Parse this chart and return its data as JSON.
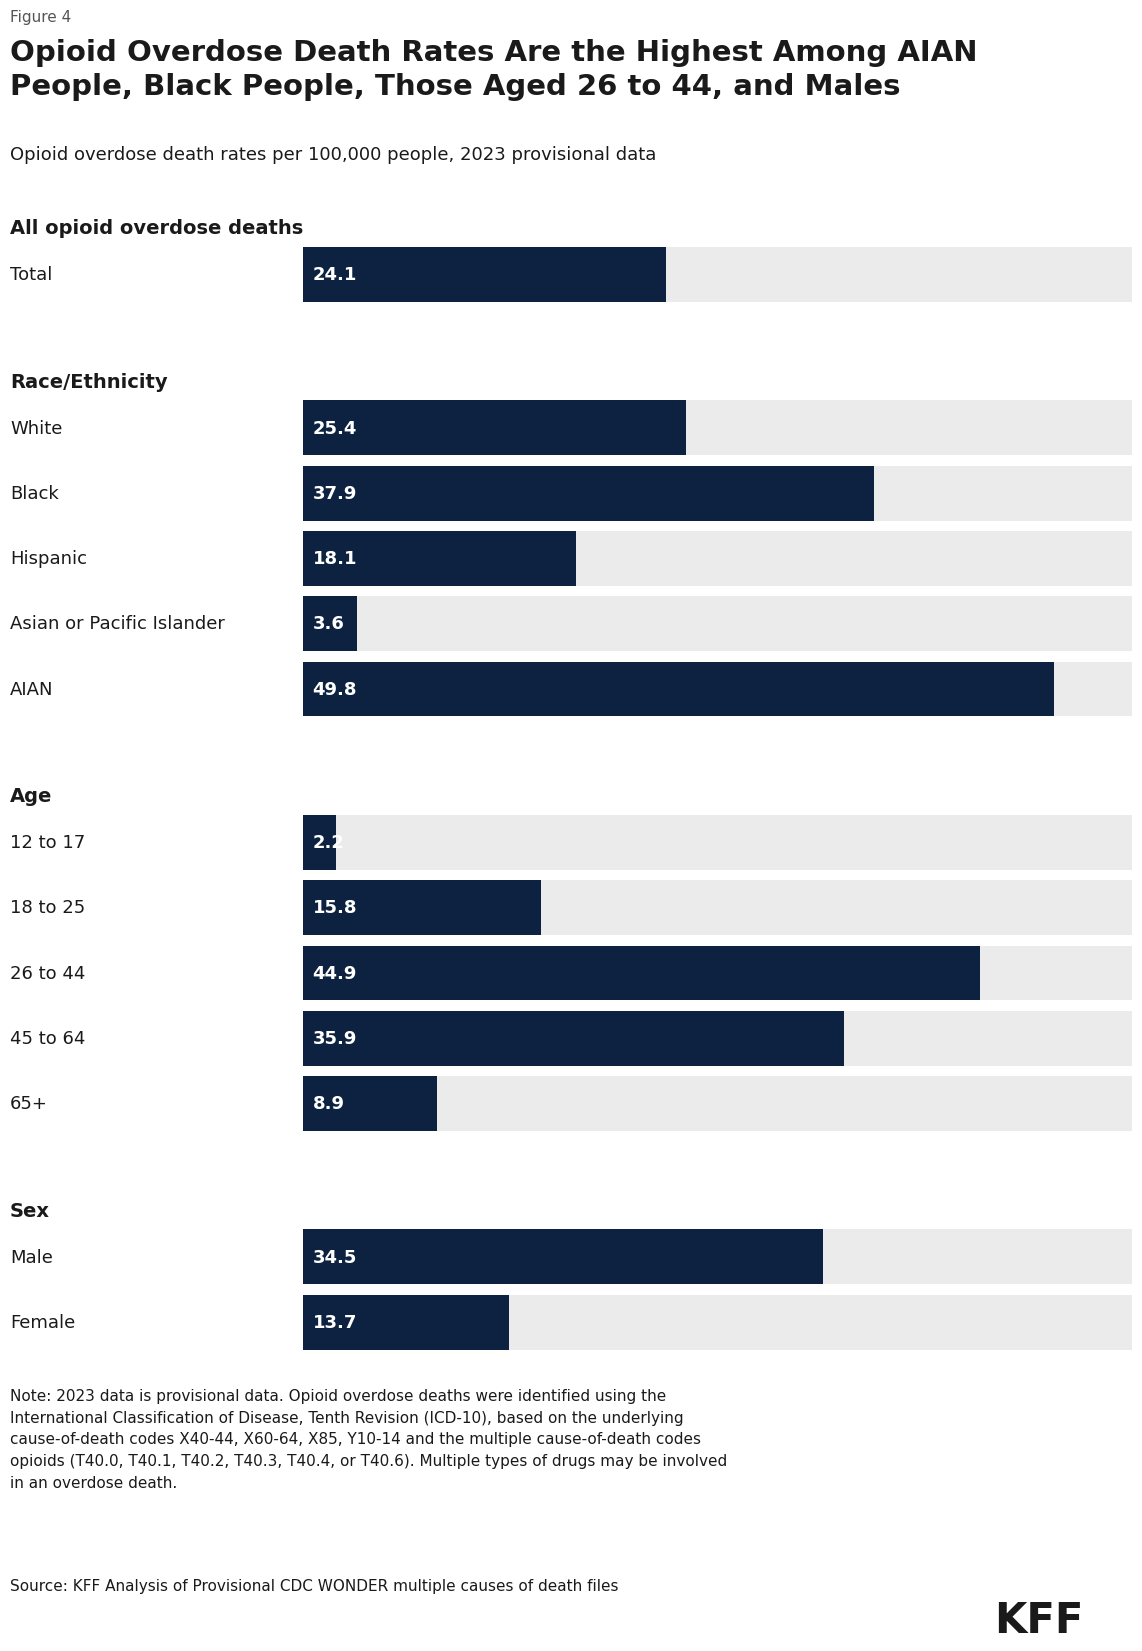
{
  "figure_label": "Figure 4",
  "title": "Opioid Overdose Death Rates Are the Highest Among AIAN\nPeople, Black People, Those Aged 26 to 44, and Males",
  "subtitle": "Opioid overdose death rates per 100,000 people, 2023 provisional data",
  "note": "Note: 2023 data is provisional data. Opioid overdose deaths were identified using the\nInternational Classification of Disease, Tenth Revision (ICD-10), based on the underlying\ncause-of-death codes X40-44, X60-64, X85, Y10-14 and the multiple cause-of-death codes\nopioids (T40.0, T40.1, T40.2, T40.3, T40.4, or T40.6). Multiple types of drugs may be involved\nin an overdose death.",
  "source": "Source: KFF Analysis of Provisional CDC WONDER multiple causes of death files",
  "bar_color": "#0d2240",
  "bg_color": "#ebebeb",
  "white_bg": "#ffffff",
  "text_color": "#1a1a1a",
  "sections": [
    {
      "header": "All opioid overdose deaths",
      "items": [
        {
          "label": "Total",
          "value": 24.1
        }
      ]
    },
    {
      "header": "Race/Ethnicity",
      "items": [
        {
          "label": "White",
          "value": 25.4
        },
        {
          "label": "Black",
          "value": 37.9
        },
        {
          "label": "Hispanic",
          "value": 18.1
        },
        {
          "label": "Asian or Pacific Islander",
          "value": 3.6
        },
        {
          "label": "AIAN",
          "value": 49.8
        }
      ]
    },
    {
      "header": "Age",
      "items": [
        {
          "label": "12 to 17",
          "value": 2.2
        },
        {
          "label": "18 to 25",
          "value": 15.8
        },
        {
          "label": "26 to 44",
          "value": 44.9
        },
        {
          "label": "45 to 64",
          "value": 35.9
        },
        {
          "label": "65+",
          "value": 8.9
        }
      ]
    },
    {
      "header": "Sex",
      "items": [
        {
          "label": "Male",
          "value": 34.5
        },
        {
          "label": "Female",
          "value": 13.7
        }
      ]
    }
  ],
  "x_max": 55,
  "figure_label_fontsize": 11,
  "title_fontsize": 21,
  "subtitle_fontsize": 13,
  "header_fontsize": 14,
  "label_fontsize": 13,
  "value_fontsize": 13,
  "note_fontsize": 11,
  "source_fontsize": 11,
  "kff_fontsize": 30
}
